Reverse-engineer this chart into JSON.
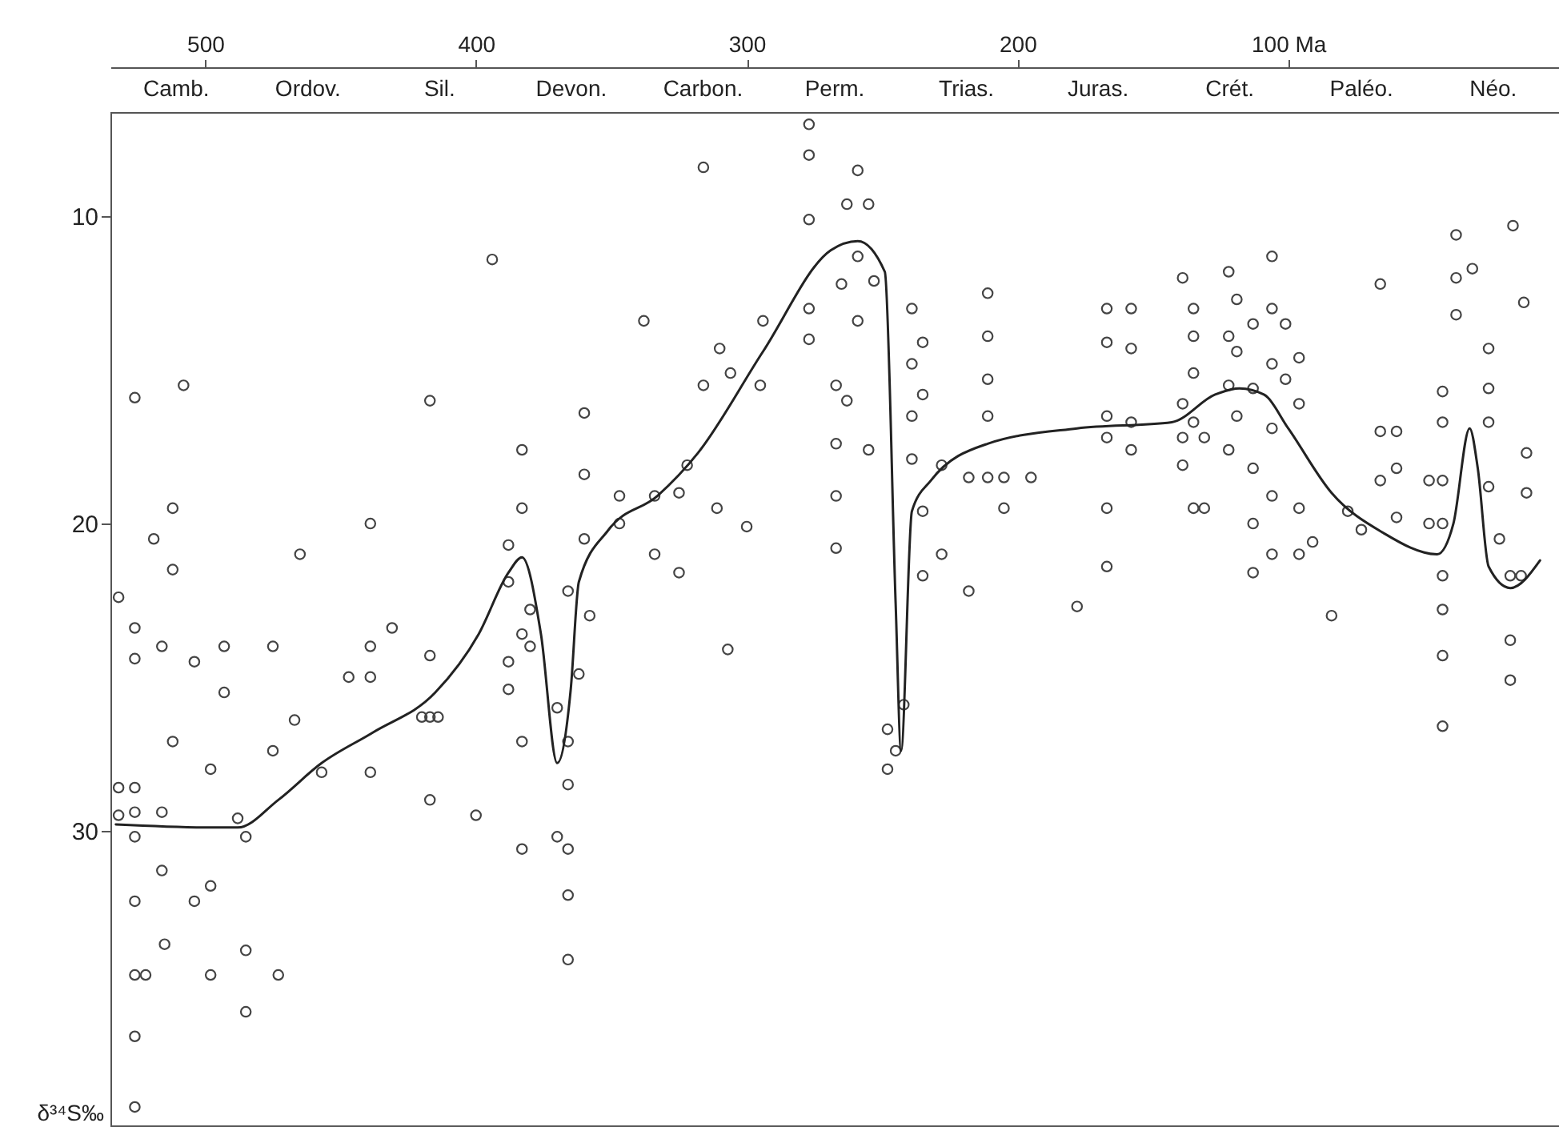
{
  "chart_data": {
    "type": "scatter",
    "ylabel": "δ³⁴S‰",
    "xlim": [
      535,
      0
    ],
    "xticks": [
      500,
      400,
      300,
      200,
      {
        "value": 100,
        "label": "100 Ma"
      }
    ],
    "ylim": [
      39.6,
      6.6
    ],
    "yticks": [
      10,
      20,
      30
    ],
    "grid": false,
    "annotations": [
      "Camb.",
      "Ordov.",
      "Sil.",
      "Devon.",
      "Carbon.",
      "Perm.",
      "Trias.",
      "Juras.",
      "Crét.",
      "Paléo.",
      "Néo."
    ],
    "series": [
      {
        "type": "scatter",
        "marker": "circle",
        "color": "#444444",
        "x": [
          526,
          526,
          526,
          526,
          526,
          526,
          526,
          526,
          526,
          526,
          532,
          532,
          532,
          508,
          512,
          512,
          512,
          516,
          516,
          516,
          515,
          519,
          522,
          504,
          504,
          498,
          498,
          498,
          493,
          493,
          488,
          485,
          485,
          485,
          475,
          475,
          473,
          465,
          467,
          457,
          447,
          439,
          439,
          439,
          439,
          431,
          417,
          417,
          417,
          417,
          420,
          414,
          400,
          394,
          383,
          383,
          383,
          383,
          383,
          388,
          388,
          388,
          388,
          380,
          380,
          370,
          370,
          366,
          366,
          366,
          366,
          366,
          366,
          362,
          360,
          360,
          360,
          358,
          347,
          347,
          334,
          334,
          325,
          325,
          322,
          311,
          300,
          307,
          316,
          316,
          338,
          294,
          295,
          310,
          306,
          277,
          277,
          277,
          277,
          277,
          259,
          259,
          259,
          263,
          263,
          255,
          255,
          265,
          253,
          267,
          267,
          267,
          267,
          248,
          248,
          245,
          242,
          239,
          239,
          239,
          239,
          235,
          235,
          235,
          235,
          228,
          228,
          218,
          218,
          211,
          211,
          211,
          211,
          211,
          205,
          205,
          195,
          178,
          167,
          167,
          167,
          167,
          167,
          167,
          158,
          158,
          158,
          158,
          139,
          139,
          139,
          139,
          135,
          135,
          135,
          135,
          135,
          131,
          131,
          122,
          122,
          122,
          122,
          119,
          119,
          119,
          113,
          113,
          113,
          113,
          113,
          106,
          106,
          106,
          106,
          106,
          106,
          101,
          101,
          96,
          96,
          96,
          96,
          91,
          84,
          78,
          73,
          66,
          66,
          66,
          60,
          60,
          60,
          48,
          48,
          43,
          43,
          43,
          43,
          43,
          43,
          43,
          43,
          38,
          38,
          38,
          32,
          26,
          26,
          26,
          26,
          17,
          13,
          12,
          12,
          22,
          18,
          18,
          18,
          14
        ],
        "values": [
          15.9,
          23.4,
          24.4,
          28.6,
          29.4,
          30.2,
          32.3,
          34.7,
          36.7,
          39.0,
          22.4,
          28.6,
          29.5,
          15.5,
          19.5,
          21.5,
          27.1,
          24.0,
          29.4,
          31.3,
          33.7,
          20.5,
          34.7,
          24.5,
          32.3,
          28.0,
          31.8,
          34.7,
          24.0,
          25.5,
          29.6,
          30.2,
          33.9,
          35.9,
          24.0,
          27.4,
          34.7,
          21.0,
          26.4,
          28.1,
          25.0,
          20.0,
          24.0,
          25.0,
          28.1,
          23.4,
          16.0,
          24.3,
          26.3,
          29.0,
          26.3,
          26.3,
          29.5,
          11.4,
          17.6,
          19.5,
          23.6,
          27.1,
          30.6,
          20.7,
          21.9,
          24.5,
          25.4,
          22.8,
          24.0,
          26.0,
          30.2,
          22.2,
          27.1,
          28.5,
          30.6,
          32.1,
          34.2,
          24.9,
          16.4,
          18.4,
          20.5,
          23.0,
          19.1,
          20.0,
          19.1,
          21.0,
          19.0,
          21.6,
          18.1,
          19.5,
          20.1,
          24.1,
          8.4,
          15.5,
          13.4,
          13.4,
          15.5,
          14.3,
          15.1,
          7.0,
          8.0,
          10.1,
          13.0,
          14.0,
          8.5,
          11.3,
          13.4,
          9.6,
          16.0,
          9.6,
          17.6,
          12.2,
          12.1,
          15.5,
          17.4,
          19.1,
          20.8,
          26.7,
          28.0,
          27.4,
          25.9,
          13.0,
          14.8,
          16.5,
          17.9,
          14.1,
          15.8,
          19.6,
          21.7,
          18.1,
          21.0,
          18.5,
          22.2,
          12.5,
          13.9,
          15.3,
          16.5,
          18.5,
          18.5,
          19.5,
          18.5,
          22.7,
          13.0,
          14.1,
          16.5,
          17.2,
          19.5,
          21.4,
          13.0,
          14.3,
          16.7,
          17.6,
          12.0,
          16.1,
          17.2,
          18.1,
          13.0,
          13.9,
          15.1,
          16.7,
          19.5,
          17.2,
          19.5,
          11.8,
          13.9,
          15.5,
          17.6,
          12.7,
          14.4,
          16.5,
          13.5,
          15.6,
          18.2,
          20.0,
          21.6,
          11.3,
          13.0,
          14.8,
          16.9,
          19.1,
          21.0,
          13.5,
          15.3,
          14.6,
          16.1,
          19.5,
          21.0,
          20.6,
          23.0,
          19.6,
          20.2,
          12.2,
          17.0,
          18.6,
          17.0,
          18.2,
          19.8,
          18.6,
          20.0,
          18.6,
          20.0,
          21.7,
          15.7,
          16.7,
          22.8,
          24.3,
          26.6,
          10.6,
          12.0,
          13.2,
          11.7,
          14.3,
          15.6,
          16.7,
          18.8,
          10.3,
          12.8,
          17.7,
          19.0,
          20.5,
          21.7,
          23.8,
          25.1,
          21.7
        ]
      },
      {
        "type": "line",
        "marker": "none",
        "color": "#222222",
        "x": [
          533,
          497,
          488,
          473,
          457,
          438,
          415,
          399,
          388,
          383,
          376,
          370,
          365,
          362,
          351,
          333,
          318,
          294,
          269,
          259,
          249,
          245,
          243,
          239,
          232,
          211,
          178,
          143,
          127,
          118,
          109,
          100,
          84,
          65,
          45,
          39,
          33,
          30,
          26,
          18,
          7
        ],
        "values": [
          29.8,
          29.9,
          29.9,
          29.0,
          27.8,
          26.8,
          25.5,
          23.6,
          21.6,
          21.1,
          23.6,
          27.8,
          25.4,
          21.9,
          20.2,
          19.1,
          17.7,
          14.4,
          11.1,
          10.8,
          11.8,
          22.6,
          27.4,
          19.6,
          18.6,
          17.4,
          16.9,
          16.7,
          15.8,
          15.6,
          15.8,
          16.9,
          19.0,
          20.3,
          21.0,
          20.0,
          16.9,
          18.2,
          21.4,
          22.1,
          21.2
        ]
      }
    ]
  }
}
